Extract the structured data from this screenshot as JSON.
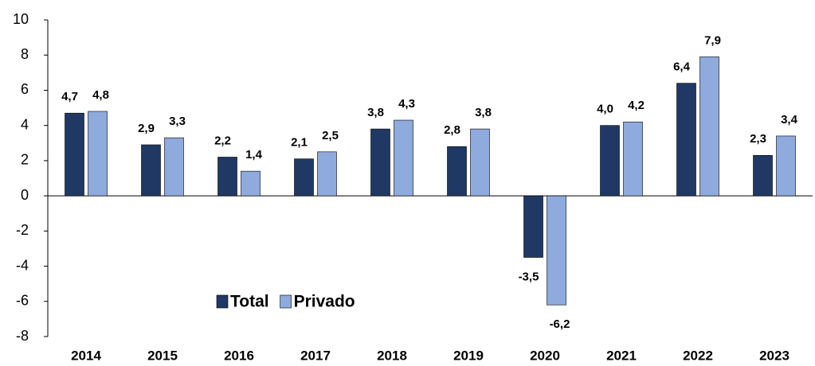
{
  "chart_data": {
    "type": "bar",
    "categories": [
      "2014",
      "2015",
      "2016",
      "2017",
      "2018",
      "2019",
      "2020",
      "2021",
      "2022",
      "2023"
    ],
    "series": [
      {
        "name": "Total",
        "color": "#203864",
        "values": [
          4.7,
          2.9,
          2.2,
          2.1,
          3.8,
          2.8,
          -3.5,
          4.0,
          6.4,
          2.3
        ],
        "value_labels": [
          "4,7",
          "2,9",
          "2,2",
          "2,1",
          "3,8",
          "2,8",
          "-3,5",
          "4,0",
          "6,4",
          "2,3"
        ]
      },
      {
        "name": "Privado",
        "color": "#8faadc",
        "values": [
          4.8,
          3.3,
          1.4,
          2.5,
          4.3,
          3.8,
          -6.2,
          4.2,
          7.9,
          3.4
        ],
        "value_labels": [
          "4,8",
          "3,3",
          "1,4",
          "2,5",
          "4,3",
          "3,8",
          "-6,2",
          "4,2",
          "7,9",
          "3,4"
        ]
      }
    ],
    "ylim": [
      -8,
      10
    ],
    "yticks": [
      10,
      8,
      6,
      4,
      2,
      0,
      -2,
      -4,
      -6,
      -8
    ],
    "legend": "bottom-left"
  }
}
